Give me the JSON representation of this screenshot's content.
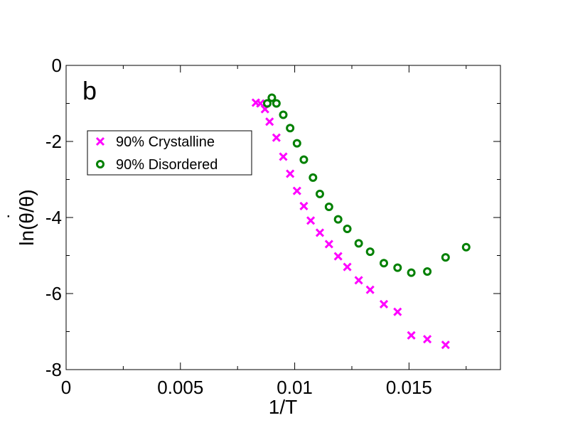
{
  "chart_data": {
    "type": "scatter",
    "panel_label": "b",
    "title": "",
    "xlabel": "1/T",
    "ylabel_parts": {
      "prefix": "ln(",
      "dot_symbol": "θ",
      "dot": "˙",
      "suffix": "/θ)"
    },
    "xlim": [
      0,
      0.019
    ],
    "ylim": [
      -8,
      0
    ],
    "x_ticks": [
      0,
      0.005,
      0.01,
      0.015
    ],
    "x_tick_labels": [
      "0",
      "0.005",
      "0.01",
      "0.015"
    ],
    "y_ticks": [
      0,
      -2,
      -4,
      -6,
      -8
    ],
    "y_tick_labels": [
      "0",
      "-2",
      "-4",
      "-6",
      "-8"
    ],
    "grid": false,
    "legend_placement": "upper-left",
    "series": [
      {
        "name": "90% Crystalline",
        "marker": "x",
        "color": "#ff00ff",
        "x": [
          0.0083,
          0.0085,
          0.0087,
          0.0089,
          0.0092,
          0.0095,
          0.0098,
          0.0101,
          0.0104,
          0.0107,
          0.0111,
          0.0115,
          0.0119,
          0.0123,
          0.0128,
          0.0133,
          0.0139,
          0.0145,
          0.0151,
          0.0158,
          0.0166
        ],
        "y": [
          -0.98,
          -1.0,
          -1.15,
          -1.48,
          -1.9,
          -2.4,
          -2.85,
          -3.3,
          -3.7,
          -4.08,
          -4.4,
          -4.7,
          -5.02,
          -5.3,
          -5.65,
          -5.9,
          -6.28,
          -6.48,
          -7.1,
          -7.2,
          -7.35
        ]
      },
      {
        "name": "90% Disordered",
        "marker": "o",
        "color": "#008000",
        "x": [
          0.0088,
          0.009,
          0.0092,
          0.0095,
          0.0098,
          0.0101,
          0.0104,
          0.0108,
          0.0111,
          0.0115,
          0.0119,
          0.0123,
          0.0128,
          0.0133,
          0.0139,
          0.0145,
          0.0151,
          0.0158,
          0.0166,
          0.0175
        ],
        "y": [
          -1.0,
          -0.85,
          -1.0,
          -1.3,
          -1.65,
          -2.05,
          -2.48,
          -2.95,
          -3.38,
          -3.72,
          -4.05,
          -4.3,
          -4.68,
          -4.9,
          -5.2,
          -5.32,
          -5.45,
          -5.42,
          -5.05,
          -4.78
        ]
      }
    ]
  }
}
